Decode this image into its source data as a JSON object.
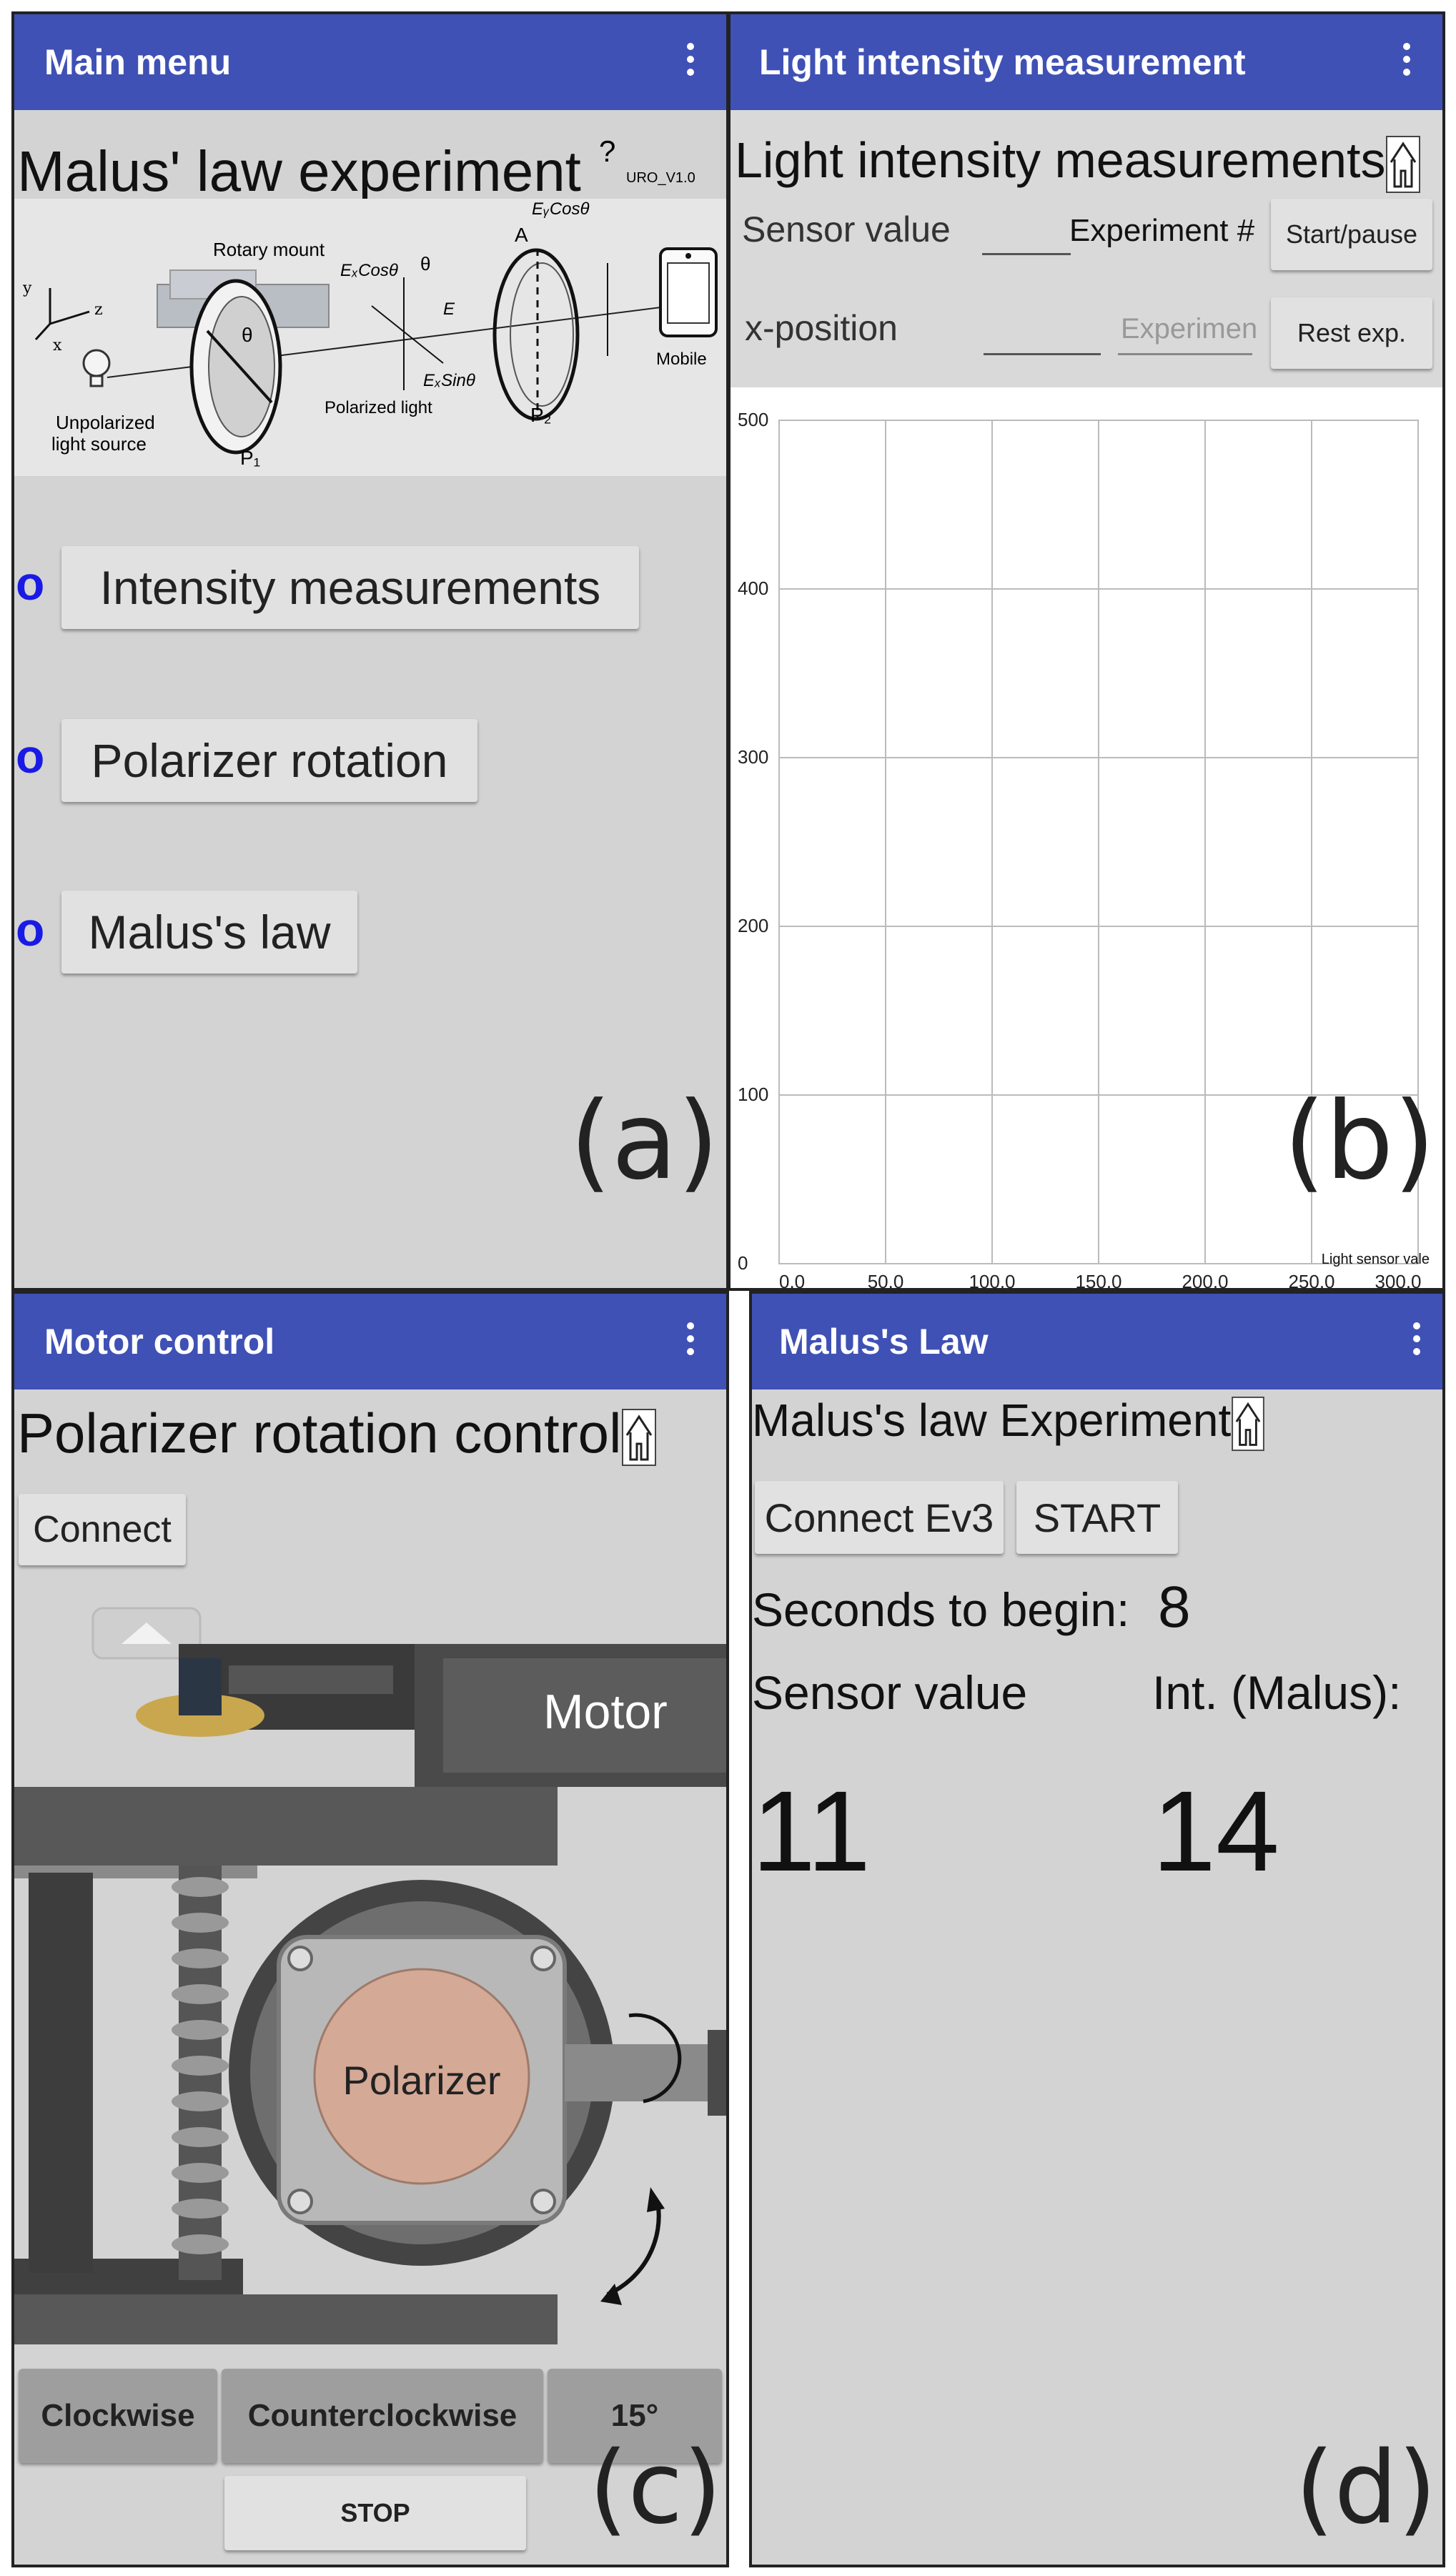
{
  "panel_a": {
    "appbar_title": "Main menu",
    "heading": "Malus' law experiment",
    "help": "?",
    "version": "URO_V1.0",
    "diagram": {
      "rotary_mount": "Rotary mount",
      "unpolarized_line1": "Unpolarized",
      "unpolarized_line2": "light source",
      "polarized_light": "Polarized light",
      "p1": "P₁",
      "p2": "P₂",
      "a": "A",
      "mobile": "Mobile",
      "theta": "θ",
      "excos": "EₓCosθ",
      "eycos": "EᵧCosθ",
      "exsin": "EₓSinθ",
      "evec": "E",
      "axis_x": "x",
      "axis_y": "y",
      "axis_z": "z"
    },
    "menu_items": [
      "Intensity measurements",
      "Polarizer rotation",
      "Malus's law"
    ],
    "bullet": "o",
    "tag": "(a)"
  },
  "panel_b": {
    "appbar_title": "Light intensity measurement",
    "heading": "Light intensity measurements",
    "sensor_label": "Sensor value",
    "experiment_label": "Experiment #",
    "start_pause": "Start/pause",
    "xpos_label": "x-position",
    "experiment_placeholder": "Experimen",
    "reset": "Rest exp.",
    "tag": "(b)"
  },
  "chart_data": {
    "type": "line",
    "x_ticks": [
      "0.0",
      "50.0",
      "100.0",
      "150.0",
      "200.0",
      "250.0",
      "300.0"
    ],
    "y_ticks": [
      "0",
      "100",
      "200",
      "300",
      "400",
      "500"
    ],
    "xlim": [
      0,
      300
    ],
    "ylim": [
      0,
      500
    ],
    "grid": true,
    "series": [
      {
        "name": "Light sensor vale",
        "x": [],
        "y": []
      }
    ],
    "legend_position": "bottom-right"
  },
  "panel_c": {
    "appbar_title": "Motor control",
    "heading": "Polarizer rotation control",
    "connect": "Connect",
    "motor_label": "Motor",
    "polarizer_label": "Polarizer",
    "clockwise": "Clockwise",
    "counterclockwise": "Counterclockwise",
    "angle": "15°",
    "stop": "STOP",
    "tag": "(c)"
  },
  "panel_d": {
    "appbar_title": "Malus's Law",
    "heading": "Malus's law Experiment",
    "connect": "Connect Ev3",
    "start": "START",
    "seconds_label": "Seconds to begin:",
    "seconds_value": "8",
    "sensor_label": "Sensor value",
    "malus_label": "Int. (Malus):",
    "sensor_value": "11",
    "malus_value": "14",
    "tag": "(d)"
  },
  "colors": {
    "appbar": "#3f51b5",
    "panel_bg": "#d3d3d3",
    "bullet": "#1a1ae6",
    "polarizer": "#d4a996"
  }
}
